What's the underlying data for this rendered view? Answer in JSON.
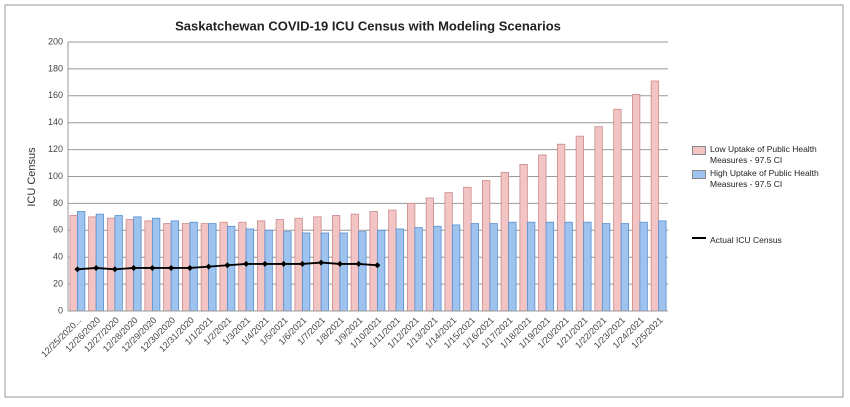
{
  "chart_data": {
    "type": "bar",
    "title": "Saskatchewan COVID-19 ICU Census with Modeling Scenarios",
    "ylabel": "ICU Census",
    "categories": [
      "12/25/2020...",
      "12/26/2020",
      "12/27/2020",
      "12/28/2020",
      "12/29/2020",
      "12/30/2020",
      "12/31/2020",
      "1/1/2021",
      "1/2/2021",
      "1/3/2021",
      "1/4/2021",
      "1/5/2021",
      "1/6/2021",
      "1/7/2021",
      "1/8/2021",
      "1/9/2021",
      "1/10/2021",
      "1/11/2021",
      "1/12/2021",
      "1/13/2021",
      "1/14/2021",
      "1/15/2021",
      "1/16/2021",
      "1/17/2021",
      "1/18/2021",
      "1/19/2021",
      "1/20/2021",
      "1/21/2021",
      "1/22/2021",
      "1/23/2021",
      "1/24/2021",
      "1/25/2021"
    ],
    "series": [
      {
        "name": "Low Uptake of Public Health Measures - 97.5 CI",
        "color": "#f2c4c4",
        "values": [
          71,
          70,
          69,
          68,
          67,
          65,
          65,
          65,
          66,
          66,
          67,
          68,
          69,
          70,
          71,
          72,
          74,
          75,
          80,
          84,
          88,
          92,
          97,
          103,
          109,
          116,
          124,
          130,
          137,
          150,
          161,
          171
        ]
      },
      {
        "name": "High Uptake of Public Health Measures - 97.5 CI",
        "color": "#9dc3ee",
        "values": [
          74,
          72,
          71,
          70,
          69,
          67,
          66,
          65,
          63,
          61,
          60,
          59,
          58,
          58,
          58,
          59,
          60,
          61,
          62,
          63,
          64,
          65,
          65,
          66,
          66,
          66,
          66,
          66,
          65,
          65,
          66,
          67
        ]
      },
      {
        "name": "Actual ICU Census",
        "type": "line",
        "color": "#000000",
        "values": [
          31,
          32,
          31,
          32,
          32,
          32,
          32,
          33,
          34,
          35,
          35,
          35,
          35,
          36,
          35,
          35,
          34,
          null,
          null,
          null,
          null,
          null,
          null,
          null,
          null,
          null,
          null,
          null,
          null,
          null,
          null,
          null
        ]
      }
    ],
    "ylim": [
      0,
      200
    ],
    "yticks": [
      0,
      20,
      40,
      60,
      80,
      100,
      120,
      140,
      160,
      180,
      200
    ],
    "grid": true
  }
}
